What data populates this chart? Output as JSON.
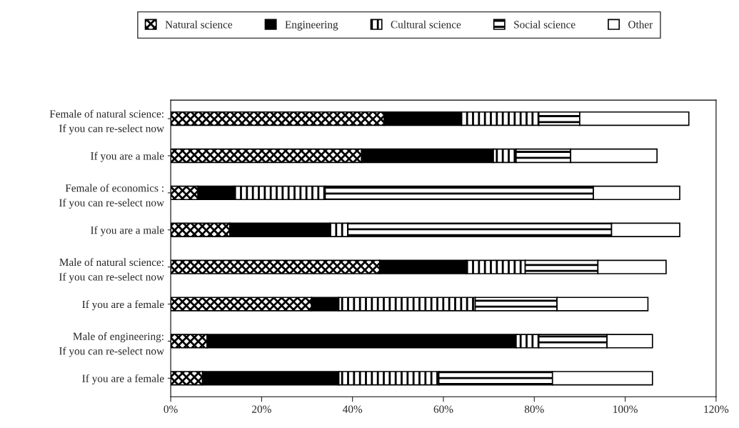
{
  "chart_data": {
    "type": "bar",
    "orientation": "horizontal",
    "stacked": true,
    "categories": [
      "Female of natural science:\nIf you can re-select now",
      "If you are a male",
      "Female of economics :\nIf you can re-select now",
      "If you are a male",
      "Male of natural science:\nIf you can re-select now",
      "If you are a female",
      "Male of engineering:\nIf you can re-select now",
      "If you are a female"
    ],
    "series": [
      {
        "name": "Natural science",
        "color": "#000000",
        "values": [
          47,
          42,
          6,
          13,
          46,
          31,
          8,
          7
        ]
      },
      {
        "name": "Engineering",
        "color": "#000000",
        "values": [
          17,
          29,
          8,
          22,
          19,
          6,
          68,
          30
        ]
      },
      {
        "name": "Cultural science",
        "color": "#000000",
        "values": [
          17,
          5,
          20,
          4,
          13,
          30,
          5,
          22
        ]
      },
      {
        "name": "Social science",
        "color": "#000000",
        "values": [
          9,
          12,
          59,
          58,
          16,
          18,
          15,
          25
        ]
      },
      {
        "name": "Other",
        "color": "#ffffff",
        "values": [
          24,
          19,
          19,
          15,
          15,
          20,
          10,
          22
        ]
      }
    ],
    "xlim": [
      0,
      120
    ],
    "xticks": [
      {
        "value": 0,
        "label": "0%"
      },
      {
        "value": 20,
        "label": "20%"
      },
      {
        "value": 40,
        "label": "40%"
      },
      {
        "value": 60,
        "label": "60%"
      },
      {
        "value": 80,
        "label": "80%"
      },
      {
        "value": 100,
        "label": "100%"
      },
      {
        "value": 120,
        "label": "120%"
      }
    ],
    "grid": false,
    "legend": "top"
  }
}
